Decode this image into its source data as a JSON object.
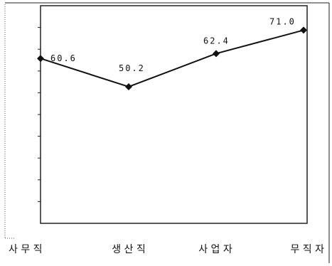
{
  "chart_data": {
    "type": "line",
    "categories": [
      "사 무 직",
      "생 산 직",
      "사 업 자",
      "무 직 자"
    ],
    "series": [
      {
        "values": [
          60.6,
          50.2,
          62.4,
          71.0
        ],
        "labels": [
          "60.6",
          "50.2",
          "62.4",
          "71.0"
        ]
      }
    ],
    "ylim": [
      0,
      80
    ],
    "y_tick_count": 10,
    "grid": false,
    "line_color": "#111111",
    "frame_color": "#222222"
  }
}
